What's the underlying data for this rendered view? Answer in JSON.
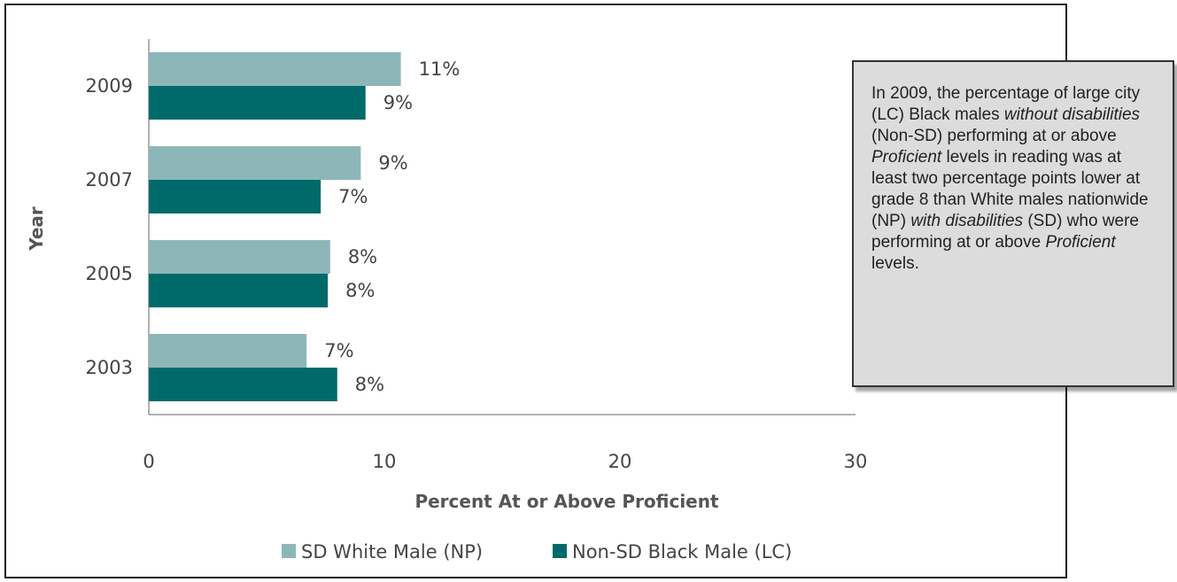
{
  "chart_data": {
    "type": "bar",
    "orientation": "horizontal",
    "categories": [
      "2009",
      "2007",
      "2005",
      "2003"
    ],
    "series": [
      {
        "name": "SD White Male (NP)",
        "values": [
          10.7,
          9.0,
          7.7,
          6.7
        ],
        "labels": [
          "11%",
          "9%",
          "8%",
          "7%"
        ],
        "color": "#8db6b8"
      },
      {
        "name": "Non-SD Black Male (LC)",
        "values": [
          9.2,
          7.3,
          7.6,
          8.0
        ],
        "labels": [
          "9%",
          "7%",
          "8%",
          "8%"
        ],
        "color": "#006a6a"
      }
    ],
    "xlabel": "Percent At or Above Proficient",
    "ylabel": "Year",
    "xlim": [
      0,
      30
    ],
    "xticks": [
      "0",
      "10",
      "20",
      "30"
    ],
    "grid": false,
    "legend_position": "bottom"
  },
  "callout": {
    "text_1": "In 2009, the percentage of large city (LC) Black males ",
    "em_1": "without disabilities",
    "text_2": " (Non-SD) performing at or above ",
    "em_2": "Proficient",
    "text_3": " levels in reading was at least two percentage points lower at grade 8 than White males nationwide (NP) ",
    "em_3": "with disabilities",
    "text_4": " (SD) who were performing at or above ",
    "em_4": "Proficient",
    "text_5": " levels."
  }
}
